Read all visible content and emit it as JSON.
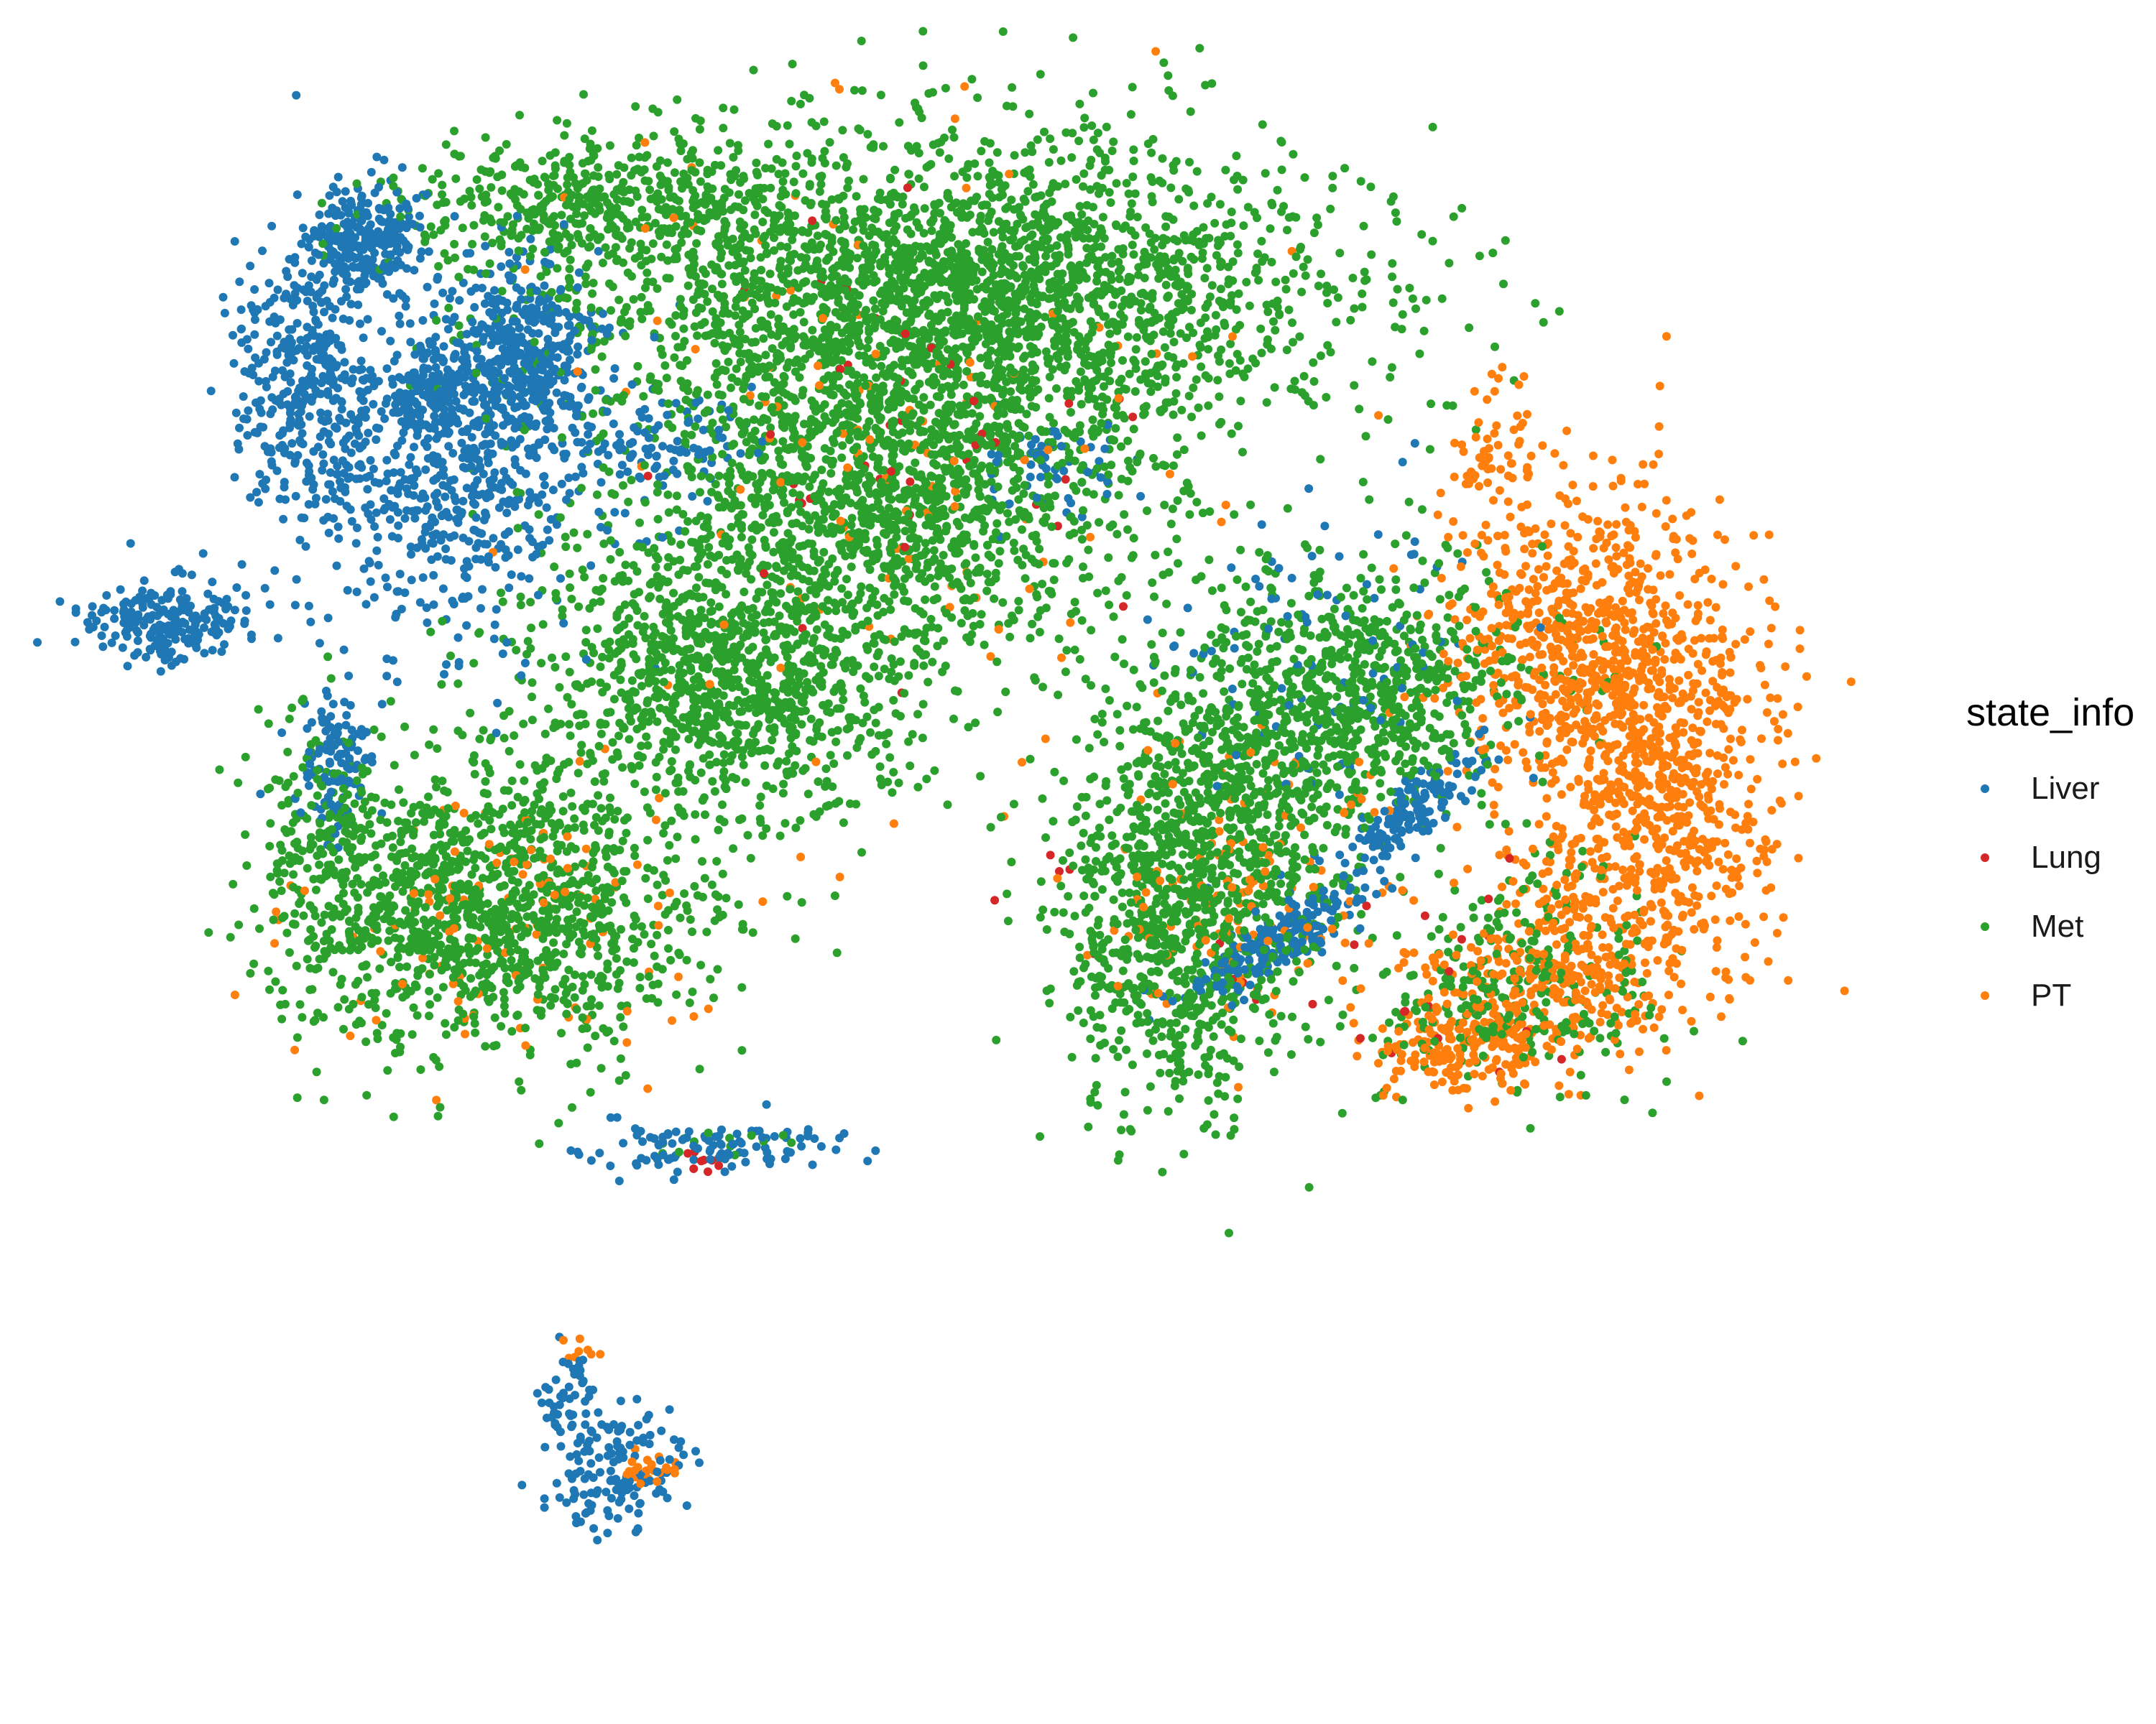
{
  "chart_data": {
    "type": "scatter",
    "title": "",
    "xlabel": "",
    "ylabel": "",
    "axes": "none",
    "grid": false,
    "x_range": [
      -10,
      13
    ],
    "y_range": [
      -12,
      8
    ],
    "legend": {
      "title": "state_info",
      "placement": "right",
      "entries": [
        {
          "name": "Liver",
          "color": "#1f77b4"
        },
        {
          "name": "Lung",
          "color": "#d62728"
        },
        {
          "name": "Met",
          "color": "#2ca02c"
        },
        {
          "name": "PT",
          "color": "#ff7f0e"
        }
      ]
    },
    "series": [
      {
        "name": "Liver",
        "color": "#1f77b4",
        "clusters": [
          {
            "cx": -6.3,
            "cy": 5.9,
            "sx": 0.35,
            "sy": 0.35,
            "n": 260
          },
          {
            "cx": -7.1,
            "cy": 4.2,
            "sx": 0.45,
            "sy": 0.9,
            "n": 320
          },
          {
            "cx": -8.9,
            "cy": 1.0,
            "sx": 0.5,
            "sy": 0.25,
            "n": 220
          },
          {
            "cx": -5.2,
            "cy": 3.0,
            "sx": 1.0,
            "sy": 1.1,
            "n": 650
          },
          {
            "cx": -4.3,
            "cy": 4.5,
            "sx": 0.5,
            "sy": 0.6,
            "n": 380
          },
          {
            "cx": -5.4,
            "cy": 3.9,
            "sx": 0.25,
            "sy": 0.3,
            "n": 120
          },
          {
            "cx": -6.7,
            "cy": -0.7,
            "sx": 0.25,
            "sy": 0.45,
            "n": 110
          },
          {
            "cx": -2.5,
            "cy": 3.3,
            "sx": 0.6,
            "sy": 0.4,
            "n": 90
          },
          {
            "cx": 2.5,
            "cy": 3.0,
            "sx": 0.4,
            "sy": 0.3,
            "n": 60
          },
          {
            "cx": 5.4,
            "cy": -3.0,
            "sx": 0.7,
            "sy": 0.18,
            "n": 200,
            "rot": 0.55
          },
          {
            "cx": 7.2,
            "cy": -1.3,
            "sx": 0.55,
            "sy": 0.14,
            "n": 140,
            "rot": 0.7
          },
          {
            "cx": 6.0,
            "cy": 0.6,
            "sx": 1.2,
            "sy": 1.0,
            "n": 100
          },
          {
            "cx": -1.9,
            "cy": -5.6,
            "sx": 0.9,
            "sy": 0.15,
            "n": 110
          },
          {
            "cx": -3.2,
            "cy": -9.7,
            "sx": 0.45,
            "sy": 0.4,
            "n": 150
          },
          {
            "cx": -3.7,
            "cy": -8.7,
            "sx": 0.15,
            "sy": 0.35,
            "n": 40
          }
        ]
      },
      {
        "name": "Lung",
        "color": "#d62728",
        "clusters": [
          {
            "cx": 0.3,
            "cy": 3.2,
            "sx": 1.3,
            "sy": 1.3,
            "n": 45
          },
          {
            "cx": -1.9,
            "cy": -5.8,
            "sx": 0.25,
            "sy": 0.1,
            "n": 8
          },
          {
            "cx": 7.5,
            "cy": -3.5,
            "sx": 0.9,
            "sy": 0.7,
            "n": 20
          },
          {
            "cx": 3.5,
            "cy": -2.5,
            "sx": 1.2,
            "sy": 0.8,
            "n": 10
          }
        ]
      },
      {
        "name": "Met",
        "color": "#2ca02c",
        "clusters": [
          {
            "cx": 1.2,
            "cy": 5.2,
            "sx": 2.5,
            "sy": 1.0,
            "n": 2700
          },
          {
            "cx": -3.5,
            "cy": 6.3,
            "sx": 1.3,
            "sy": 0.4,
            "n": 380
          },
          {
            "cx": 0.5,
            "cy": 2.6,
            "sx": 1.6,
            "sy": 1.0,
            "n": 1300
          },
          {
            "cx": -1.7,
            "cy": 0.4,
            "sx": 1.3,
            "sy": 0.9,
            "n": 1100
          },
          {
            "cx": -4.6,
            "cy": -2.6,
            "sx": 1.3,
            "sy": 0.9,
            "n": 1200
          },
          {
            "cx": -6.8,
            "cy": -1.8,
            "sx": 0.45,
            "sy": 0.9,
            "n": 220
          },
          {
            "cx": 4.1,
            "cy": -2.7,
            "sx": 0.8,
            "sy": 1.2,
            "n": 900
          },
          {
            "cx": 6.3,
            "cy": 0.2,
            "sx": 1.2,
            "sy": 0.8,
            "n": 750
          },
          {
            "cx": 5.1,
            "cy": -1.2,
            "sx": 0.8,
            "sy": 0.8,
            "n": 350
          },
          {
            "cx": 8.9,
            "cy": -3.3,
            "sx": 0.9,
            "sy": 0.8,
            "n": 160
          },
          {
            "cx": 7.8,
            "cy": -3.8,
            "sx": 0.7,
            "sy": 0.5,
            "n": 130
          },
          {
            "cx": -1.8,
            "cy": -5.6,
            "sx": 0.6,
            "sy": 0.1,
            "n": 12
          }
        ]
      },
      {
        "name": "PT",
        "color": "#ff7f0e",
        "clusters": [
          {
            "cx": 9.5,
            "cy": 0.8,
            "sx": 0.9,
            "sy": 1.0,
            "n": 750
          },
          {
            "cx": 10.2,
            "cy": -1.6,
            "sx": 0.8,
            "sy": 1.0,
            "n": 620
          },
          {
            "cx": 8.9,
            "cy": -3.5,
            "sx": 0.9,
            "sy": 0.6,
            "n": 300
          },
          {
            "cx": 7.8,
            "cy": -4.3,
            "sx": 0.6,
            "sy": 0.3,
            "n": 180
          },
          {
            "cx": 8.2,
            "cy": 3.1,
            "sx": 0.3,
            "sy": 0.5,
            "n": 60
          },
          {
            "cx": 5.0,
            "cy": -2.3,
            "sx": 1.0,
            "sy": 0.9,
            "n": 130
          },
          {
            "cx": 0.5,
            "cy": 3.2,
            "sx": 2.0,
            "sy": 2.0,
            "n": 120
          },
          {
            "cx": -4.5,
            "cy": -2.6,
            "sx": 1.3,
            "sy": 0.9,
            "n": 110
          },
          {
            "cx": -2.6,
            "cy": -9.7,
            "sx": 0.2,
            "sy": 0.12,
            "n": 25
          },
          {
            "cx": -3.6,
            "cy": -8.2,
            "sx": 0.2,
            "sy": 0.1,
            "n": 8
          }
        ]
      }
    ]
  }
}
